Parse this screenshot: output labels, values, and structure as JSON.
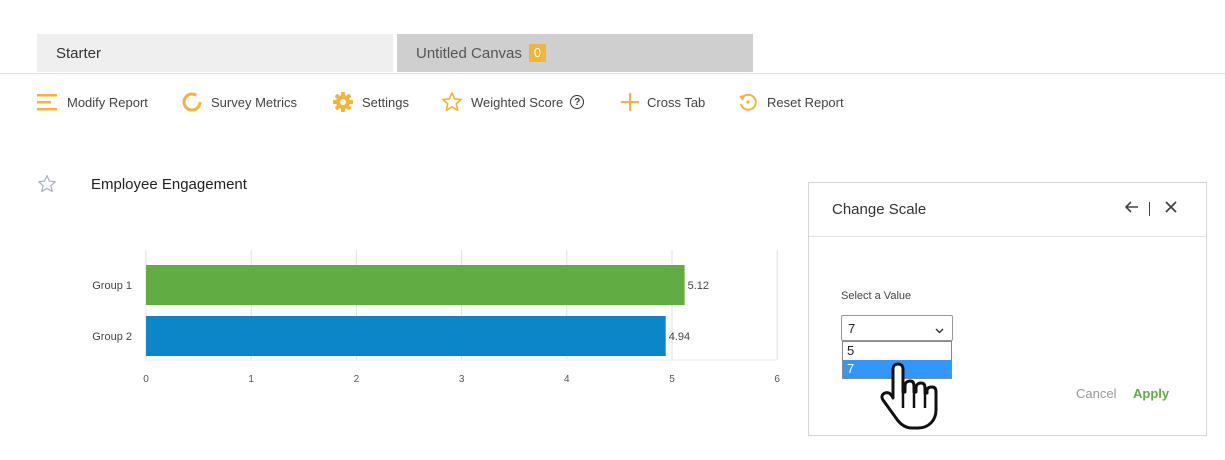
{
  "tabs": [
    {
      "label": "Starter"
    },
    {
      "label": "Untitled Canvas",
      "badge": "0"
    }
  ],
  "toolbar": {
    "modify_report": "Modify Report",
    "survey_metrics": "Survey Metrics",
    "settings": "Settings",
    "weighted_score": "Weighted Score",
    "help": "?",
    "cross_tab": "Cross Tab",
    "reset_report": "Reset Report"
  },
  "colors": {
    "accent": "#f2b43a",
    "group1": "#62ad43",
    "group2": "#0a86c9",
    "apply": "#62ad43",
    "selected_option": "#3297fd"
  },
  "report": {
    "title": "Employee Engagement"
  },
  "chart_data": {
    "type": "bar",
    "orientation": "horizontal",
    "categories": [
      "Group 1",
      "Group 2"
    ],
    "values": [
      5.12,
      4.94
    ],
    "value_labels": [
      "5.12",
      "4.94"
    ],
    "xlim": [
      0,
      6
    ],
    "x_ticks": [
      "0",
      "1",
      "2",
      "3",
      "4",
      "5",
      "6"
    ],
    "grid": true
  },
  "change_scale": {
    "title": "Change Scale",
    "select_label": "Select a Value",
    "selected_value": "7",
    "options": [
      "5",
      "7"
    ],
    "highlighted_option": "7",
    "cancel": "Cancel",
    "apply": "Apply"
  }
}
